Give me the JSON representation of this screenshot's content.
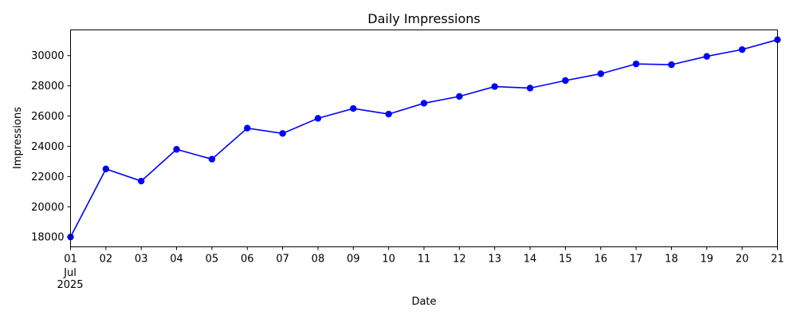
{
  "chart_data": {
    "type": "line",
    "title": "Daily Impressions",
    "xlabel": "Date",
    "ylabel": "Impressions",
    "x": [
      "2025-07-01",
      "2025-07-02",
      "2025-07-03",
      "2025-07-04",
      "2025-07-05",
      "2025-07-06",
      "2025-07-07",
      "2025-07-08",
      "2025-07-09",
      "2025-07-10",
      "2025-07-11",
      "2025-07-12",
      "2025-07-13",
      "2025-07-14",
      "2025-07-15",
      "2025-07-16",
      "2025-07-17",
      "2025-07-18",
      "2025-07-19",
      "2025-07-20",
      "2025-07-21"
    ],
    "x_tick_labels": [
      "01",
      "02",
      "03",
      "04",
      "05",
      "06",
      "07",
      "08",
      "09",
      "10",
      "11",
      "12",
      "13",
      "14",
      "15",
      "16",
      "17",
      "18",
      "19",
      "20",
      "21"
    ],
    "x_secondary_label": [
      "Jul",
      "2025"
    ],
    "series": [
      {
        "color": "#0000ff",
        "values": [
          18000,
          22500,
          21700,
          23800,
          23150,
          25200,
          24850,
          25850,
          26500,
          26130,
          26850,
          27300,
          27950,
          27850,
          28350,
          28800,
          29450,
          29400,
          29950,
          30400,
          31050
        ]
      }
    ],
    "y_ticks": [
      18000,
      20000,
      22000,
      24000,
      26000,
      28000,
      30000
    ],
    "ylim": [
      17350,
      31700
    ],
    "grid": false,
    "legend": "none"
  }
}
